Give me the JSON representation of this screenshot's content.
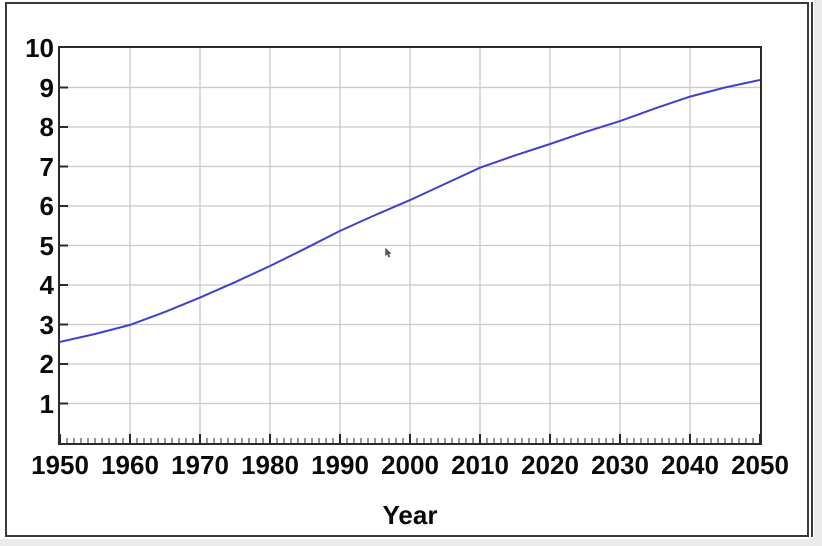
{
  "chart_data": {
    "type": "line",
    "xlabel": "Year",
    "x": [
      1950,
      1955,
      1960,
      1965,
      1970,
      1975,
      1980,
      1985,
      1990,
      1995,
      2000,
      2005,
      2010,
      2015,
      2020,
      2025,
      2030,
      2035,
      2040,
      2045,
      2050
    ],
    "values": [
      2.56,
      2.76,
      2.99,
      3.32,
      3.68,
      4.07,
      4.48,
      4.92,
      5.37,
      5.77,
      6.15,
      6.56,
      6.97,
      7.28,
      7.57,
      7.87,
      8.15,
      8.47,
      8.77,
      9.0,
      9.19
    ],
    "xlim": [
      1950,
      2050
    ],
    "ylim": [
      0,
      10
    ],
    "x_tick_labels": [
      "1950",
      "1960",
      "1970",
      "1980",
      "1990",
      "2000",
      "2010",
      "2020",
      "2030",
      "2040",
      "2050"
    ],
    "x_major_tick_step": 10,
    "x_minor_tick_step": 1,
    "y_tick_labels": [
      "1",
      "2",
      "3",
      "4",
      "5",
      "6",
      "7",
      "8",
      "9",
      "10"
    ],
    "grid": "on",
    "legend": "none",
    "line_color": "#4040cc",
    "grid_color": "#c9c9c9",
    "axis_color": "#2b2b2b",
    "label_color": "#0a0a0a"
  }
}
